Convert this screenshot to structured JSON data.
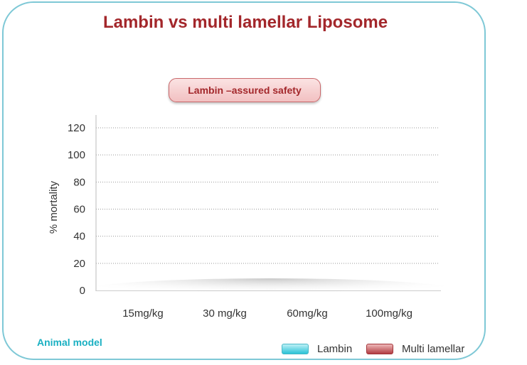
{
  "header": {
    "title": "Lambin vs multi lamellar Liposome"
  },
  "badge": {
    "text": "Lambin –assured safety"
  },
  "footer": {
    "animal_model": "Animal model"
  },
  "legend": {
    "lambin": "Lambin",
    "multi": "Multi lamellar"
  },
  "colors": {
    "title": "#a3272b",
    "lambin": "#29c2d6",
    "multi": "#b13d42",
    "border": "#7ec8d6"
  },
  "chart_data": {
    "type": "bar",
    "categories": [
      "15mg/kg",
      "30 mg/kg",
      "60mg/kg",
      "100mg/kg"
    ],
    "series": [
      {
        "name": "Lambin",
        "values": [
          0,
          0,
          0,
          0
        ]
      },
      {
        "name": "Multi lamellar",
        "values": [
          0,
          0,
          0,
          0
        ]
      }
    ],
    "title": "Lambin vs multi lamellar Liposome",
    "xlabel": "",
    "ylabel": "% mortality",
    "ylim": [
      0,
      120
    ],
    "yticks": [
      0,
      20,
      40,
      60,
      80,
      100,
      120
    ],
    "grid": true,
    "legend_position": "bottom-right"
  }
}
